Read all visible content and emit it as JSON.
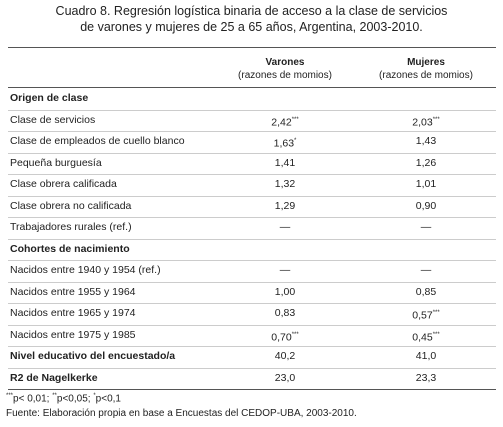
{
  "header": {
    "title_lines": [
      "Cuadro 8. Regresión logística binaria de acceso a la clase de servicios",
      "de varones y mujeres de 25 a 65 años, Argentina, 2003-2010."
    ]
  },
  "table": {
    "columns": [
      {
        "name": "Varones",
        "sub": "(razones de momios)"
      },
      {
        "name": "Mujeres",
        "sub": "(razones de momios)"
      }
    ],
    "rows": [
      {
        "label": "Origen de clase",
        "bold": true
      },
      {
        "label": "Clase de servicios",
        "cells": [
          {
            "text": "2,42",
            "sig": "***"
          },
          {
            "text": "2,03",
            "sig": "***"
          }
        ]
      },
      {
        "label": "Clase de empleados de cuello blanco",
        "cells": [
          {
            "text": "1,63",
            "sig": "*"
          },
          {
            "text": "1,43"
          }
        ]
      },
      {
        "label": "Pequeña burguesía",
        "cells": [
          {
            "text": "1,41"
          },
          {
            "text": "1,26"
          }
        ]
      },
      {
        "label": "Clase obrera calificada",
        "cells": [
          {
            "text": "1,32"
          },
          {
            "text": "1,01"
          }
        ]
      },
      {
        "label": "Clase obrera no calificada",
        "cells": [
          {
            "text": "1,29"
          },
          {
            "text": "0,90"
          }
        ]
      },
      {
        "label": "Trabajadores rurales (ref.)",
        "cells": [
          {
            "text": "—"
          },
          {
            "text": "—"
          }
        ]
      },
      {
        "label": "Cohortes de nacimiento",
        "bold": true
      },
      {
        "label": "Nacidos entre 1940 y 1954 (ref.)",
        "cells": [
          {
            "text": "—"
          },
          {
            "text": "—"
          }
        ]
      },
      {
        "label": "Nacidos entre 1955 y 1964",
        "cells": [
          {
            "text": "1,00"
          },
          {
            "text": "0,85"
          }
        ]
      },
      {
        "label": "Nacidos entre 1965 y 1974",
        "cells": [
          {
            "text": "0,83"
          },
          {
            "text": "0,57",
            "sig": "***"
          }
        ]
      },
      {
        "label": "Nacidos entre 1975 y 1985",
        "cells": [
          {
            "text": "0,70",
            "sig": "***"
          },
          {
            "text": "0,45",
            "sig": "***"
          }
        ]
      },
      {
        "label": "Nivel educativo del encuestado/a",
        "bold": true,
        "cells": [
          {
            "text": "40,2"
          },
          {
            "text": "41,0"
          }
        ]
      },
      {
        "label": "R2 de Nagelkerke",
        "bold": true,
        "cells": [
          {
            "text": "23,0"
          },
          {
            "text": "23,3"
          }
        ]
      }
    ]
  },
  "footer": {
    "significance": [
      {
        "mark": "***",
        "text": "p< 0,01;"
      },
      {
        "mark": "**",
        "text": "p<0,05;"
      },
      {
        "mark": "*",
        "text": "p<0,1"
      }
    ],
    "source": "Fuente: Elaboración propia en base a Encuestas del CEDOP-UBA, 2003-2010."
  }
}
